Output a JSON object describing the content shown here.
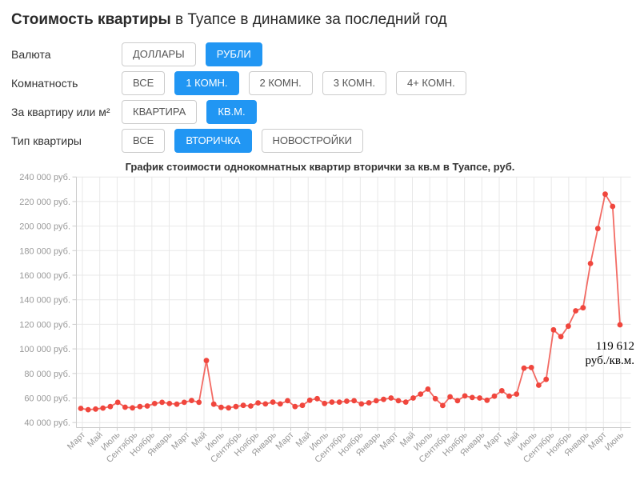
{
  "page": {
    "title_bold": "Стоимость квартиры",
    "title_rest": " в Туапсе в динамике за последний год"
  },
  "colors": {
    "accent_blue": "#2196f3",
    "line_red": "#f0463d",
    "grid": "#e8e8e8",
    "axis": "#cccccc",
    "tick_text": "#999999"
  },
  "filters": [
    {
      "id": "currency",
      "label": "Валюта",
      "options": [
        {
          "name": "dollars",
          "label": "ДОЛЛАРЫ",
          "selected": false
        },
        {
          "name": "rubles",
          "label": "РУБЛИ",
          "selected": true
        }
      ]
    },
    {
      "id": "rooms",
      "label": "Комнатность",
      "options": [
        {
          "name": "all",
          "label": "ВСЕ",
          "selected": false
        },
        {
          "name": "1-room",
          "label": "1 КОМН.",
          "selected": true
        },
        {
          "name": "2-room",
          "label": "2 КОМН.",
          "selected": false
        },
        {
          "name": "3-room",
          "label": "3 КОМН.",
          "selected": false
        },
        {
          "name": "4plus-room",
          "label": "4+ КОМН.",
          "selected": false
        }
      ]
    },
    {
      "id": "per-unit",
      "label": "За квартиру или м²",
      "options": [
        {
          "name": "per-flat",
          "label": "КВАРТИРА",
          "selected": false
        },
        {
          "name": "per-sqm",
          "label": "КВ.М.",
          "selected": true
        }
      ]
    },
    {
      "id": "flat-type",
      "label": "Тип квартиры",
      "options": [
        {
          "name": "all",
          "label": "ВСЕ",
          "selected": false
        },
        {
          "name": "secondary",
          "label": "ВТОРИЧКА",
          "selected": true
        },
        {
          "name": "new-builds",
          "label": "НОВОСТРОЙКИ",
          "selected": false
        }
      ]
    }
  ],
  "chart_data": {
    "type": "line",
    "title": "График стоимости однокомнатных квартир вторички за кв.м в Туапсе, руб.",
    "ylabel": "руб.",
    "xlabel": "",
    "ylim": [
      40000,
      240000
    ],
    "y_step": 20000,
    "grid": true,
    "legend": "none",
    "y_tick_labels": [
      "40 000 руб.",
      "60 000 руб.",
      "80 000 руб.",
      "100 000 руб.",
      "120 000 руб.",
      "140 000 руб.",
      "160 000 руб.",
      "180 000 руб.",
      "200 000 руб.",
      "220 000 руб.",
      "240 000 руб."
    ],
    "x_tick_labels": [
      "Март",
      "Май",
      "Июль",
      "Сентябрь",
      "Ноябрь",
      "Январь",
      "Март",
      "Май",
      "Июль",
      "Сентябрь",
      "Ноябрь",
      "Январь",
      "Март",
      "Май",
      "Июль",
      "Сентябрь",
      "Ноябрь",
      "Январь",
      "Март",
      "Май",
      "Июль",
      "Сентябрь",
      "Ноябрь",
      "Январь",
      "Март",
      "Май",
      "Июль",
      "Сентябрь",
      "Ноябрь",
      "Январь",
      "Март",
      "Июнь"
    ],
    "values": [
      51500,
      50500,
      51000,
      51800,
      53000,
      56500,
      52500,
      52000,
      53000,
      53500,
      55500,
      56500,
      55500,
      55000,
      56500,
      58000,
      56500,
      90500,
      55000,
      52400,
      52000,
      53000,
      54000,
      53500,
      56000,
      55200,
      56700,
      55200,
      57800,
      53000,
      54000,
      58200,
      59500,
      55600,
      56700,
      56700,
      57400,
      57800,
      55200,
      56100,
      57800,
      58900,
      60000,
      57800,
      56700,
      60000,
      63200,
      67200,
      59500,
      53900,
      61000,
      57800,
      61700,
      60400,
      60000,
      58200,
      61500,
      65900,
      61500,
      63200,
      84300,
      84800,
      70400,
      75200,
      115500,
      110000,
      118500,
      131000,
      133500,
      169500,
      198000,
      226000,
      216000,
      119612
    ],
    "last_value": 119612,
    "annotation": {
      "line1": "119 612",
      "line2": "руб./кв.м."
    }
  }
}
